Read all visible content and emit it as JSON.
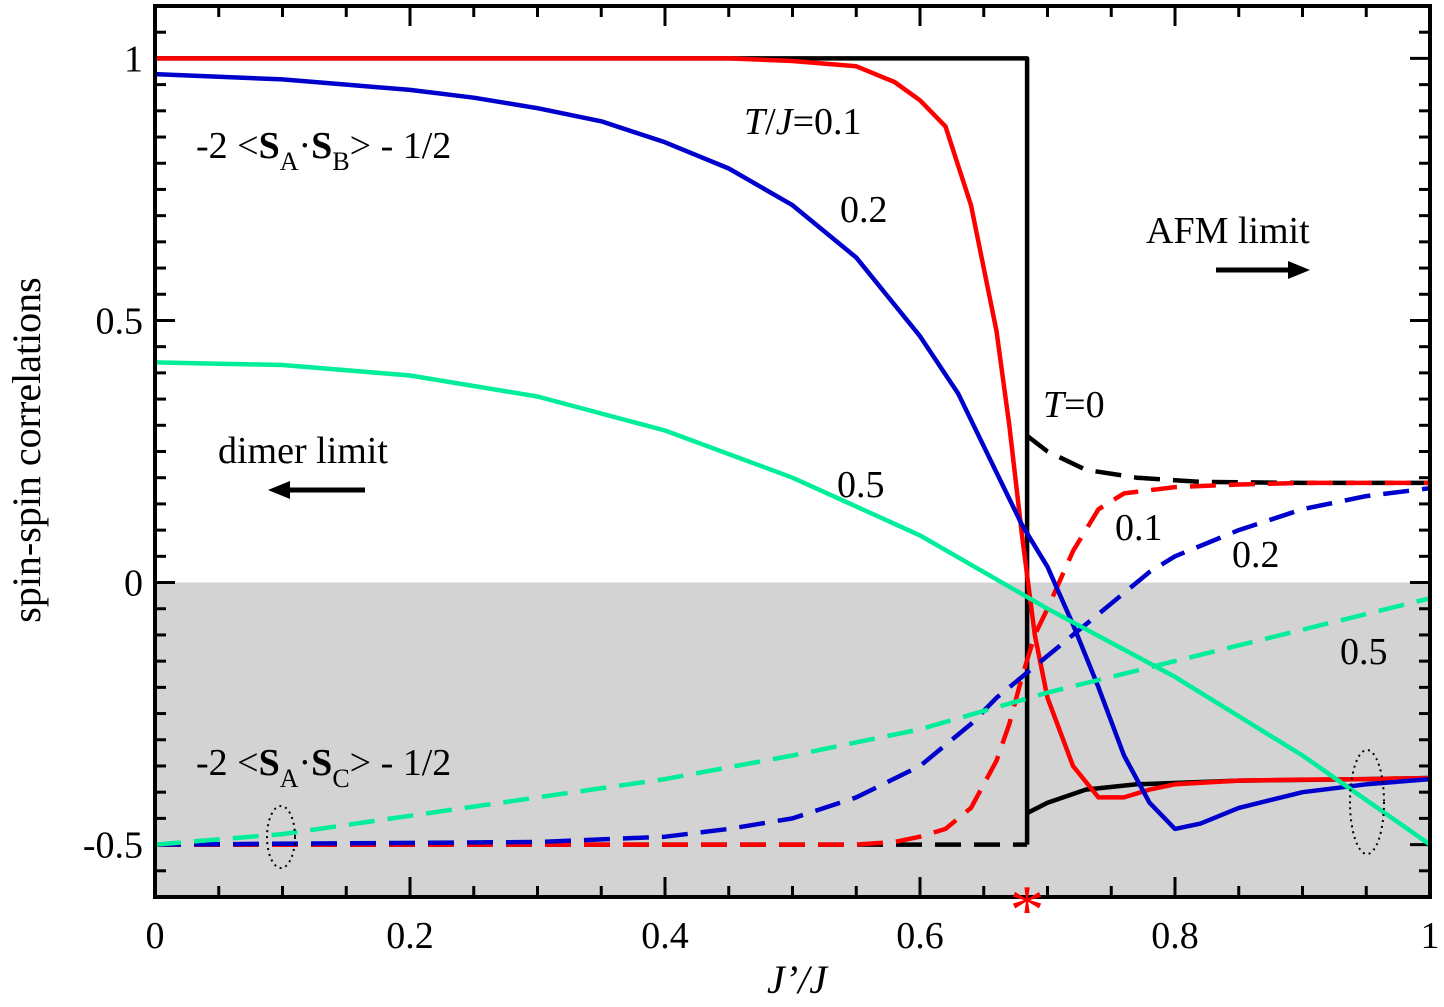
{
  "chart_data": {
    "type": "line",
    "xlabel": "J’/J",
    "ylabel": "spin-spin correlations",
    "xlim": [
      0,
      1
    ],
    "ylim": [
      -0.6,
      1.1
    ],
    "x_ticks": [
      "0",
      "0.2",
      "0.4",
      "0.6",
      "0.8",
      "1"
    ],
    "y_ticks": [
      "-0.5",
      "0",
      "0.5",
      "1"
    ],
    "shaded_region": {
      "y_from": -0.6,
      "y_to": 0,
      "color": "#d3d3d3"
    },
    "critical_point": {
      "x": 0.684,
      "marker": "*",
      "color": "#ff0000"
    },
    "series": [
      {
        "style": "solid",
        "color": "#000000",
        "x": [
          0,
          0.684,
          0.684
        ],
        "y": [
          1,
          1,
          -0.5
        ]
      },
      {
        "style": "solid",
        "color": "#000000",
        "x": [
          0.684,
          0.7,
          0.73,
          0.77,
          0.85,
          0.95,
          1.0
        ],
        "y": [
          -0.44,
          -0.42,
          -0.395,
          -0.385,
          -0.378,
          -0.375,
          -0.373
        ]
      },
      {
        "style": "dashed",
        "color": "#000000",
        "x": [
          0,
          0.684
        ],
        "y": [
          -0.5,
          -0.5
        ]
      },
      {
        "style": "dashed",
        "color": "#000000",
        "x": [
          0.684,
          0.7,
          0.73,
          0.77,
          0.82,
          0.9,
          1.0
        ],
        "y": [
          0.28,
          0.25,
          0.215,
          0.2,
          0.192,
          0.19,
          0.19
        ]
      },
      {
        "style": "solid",
        "color": "#ff0000",
        "x": [
          0,
          0.45,
          0.5,
          0.55,
          0.58,
          0.6,
          0.62,
          0.64,
          0.66,
          0.67,
          0.68,
          0.69,
          0.7,
          0.72,
          0.74,
          0.76,
          0.78,
          0.8,
          0.85,
          0.9,
          0.95,
          1.0
        ],
        "y": [
          1,
          1,
          0.995,
          0.985,
          0.955,
          0.92,
          0.87,
          0.72,
          0.48,
          0.3,
          0.09,
          -0.1,
          -0.22,
          -0.35,
          -0.41,
          -0.41,
          -0.395,
          -0.385,
          -0.378,
          -0.376,
          -0.375,
          -0.373
        ]
      },
      {
        "style": "dashed",
        "color": "#ff0000",
        "x": [
          0,
          0.55,
          0.58,
          0.6,
          0.62,
          0.64,
          0.66,
          0.67,
          0.68,
          0.69,
          0.7,
          0.72,
          0.74,
          0.76,
          0.8,
          0.85,
          0.9,
          1.0
        ],
        "y": [
          -0.5,
          -0.5,
          -0.495,
          -0.485,
          -0.47,
          -0.43,
          -0.34,
          -0.27,
          -0.18,
          -0.1,
          -0.05,
          0.06,
          0.14,
          0.17,
          0.182,
          0.187,
          0.19,
          0.19
        ]
      },
      {
        "style": "solid",
        "color": "#0000cc",
        "x": [
          0,
          0.05,
          0.1,
          0.15,
          0.2,
          0.25,
          0.3,
          0.35,
          0.4,
          0.45,
          0.5,
          0.55,
          0.6,
          0.63,
          0.66,
          0.68,
          0.7,
          0.72,
          0.74,
          0.76,
          0.78,
          0.8,
          0.82,
          0.85,
          0.9,
          0.95,
          1.0
        ],
        "y": [
          0.97,
          0.965,
          0.96,
          0.95,
          0.94,
          0.925,
          0.905,
          0.88,
          0.84,
          0.79,
          0.72,
          0.62,
          0.47,
          0.36,
          0.21,
          0.11,
          0.03,
          -0.08,
          -0.2,
          -0.33,
          -0.42,
          -0.47,
          -0.46,
          -0.43,
          -0.4,
          -0.385,
          -0.375
        ]
      },
      {
        "style": "dashed",
        "color": "#0000cc",
        "x": [
          0,
          0.3,
          0.4,
          0.45,
          0.5,
          0.55,
          0.6,
          0.62,
          0.64,
          0.66,
          0.68,
          0.7,
          0.72,
          0.74,
          0.76,
          0.78,
          0.8,
          0.85,
          0.9,
          0.95,
          1.0
        ],
        "y": [
          -0.5,
          -0.495,
          -0.485,
          -0.47,
          -0.45,
          -0.41,
          -0.35,
          -0.31,
          -0.27,
          -0.22,
          -0.18,
          -0.14,
          -0.1,
          -0.06,
          -0.02,
          0.02,
          0.05,
          0.1,
          0.14,
          0.165,
          0.18
        ]
      },
      {
        "style": "solid",
        "color": "#00ee99",
        "x": [
          0,
          0.1,
          0.2,
          0.3,
          0.4,
          0.5,
          0.6,
          0.7,
          0.8,
          0.9,
          1.0
        ],
        "y": [
          0.42,
          0.415,
          0.395,
          0.355,
          0.29,
          0.2,
          0.09,
          -0.05,
          -0.18,
          -0.33,
          -0.5
        ]
      },
      {
        "style": "dashed",
        "color": "#00ee99",
        "x": [
          0,
          0.1,
          0.2,
          0.3,
          0.4,
          0.5,
          0.6,
          0.7,
          0.8,
          0.9,
          1.0
        ],
        "y": [
          -0.5,
          -0.48,
          -0.445,
          -0.41,
          -0.375,
          -0.33,
          -0.28,
          -0.21,
          -0.15,
          -0.09,
          -0.03
        ]
      }
    ],
    "annotations": {
      "sab_pre": "-2 <",
      "sab_S1": "S",
      "sab_sub1": "A",
      "sab_dot": "·",
      "sab_S2": "S",
      "sab_sub2": "B",
      "sab_post": "> - 1/2",
      "sac_pre": "-2 <",
      "sac_S1": "S",
      "sac_sub1": "A",
      "sac_dot": "·",
      "sac_S2": "S",
      "sac_sub2": "C",
      "sac_post": "> - 1/2",
      "tj_T": "T",
      "tj_slash": "/",
      "tj_J": "J",
      "tj_val": "=0.1",
      "t0_T": "T",
      "t0_val": "=0",
      "lbl_02_upper": "0.2",
      "lbl_05_upper": "0.5",
      "lbl_01_lower": "0.1",
      "lbl_02_lower": "0.2",
      "lbl_05_lower": "0.5",
      "afm_limit": "AFM limit",
      "dimer_limit": "dimer limit",
      "star": "*"
    }
  }
}
